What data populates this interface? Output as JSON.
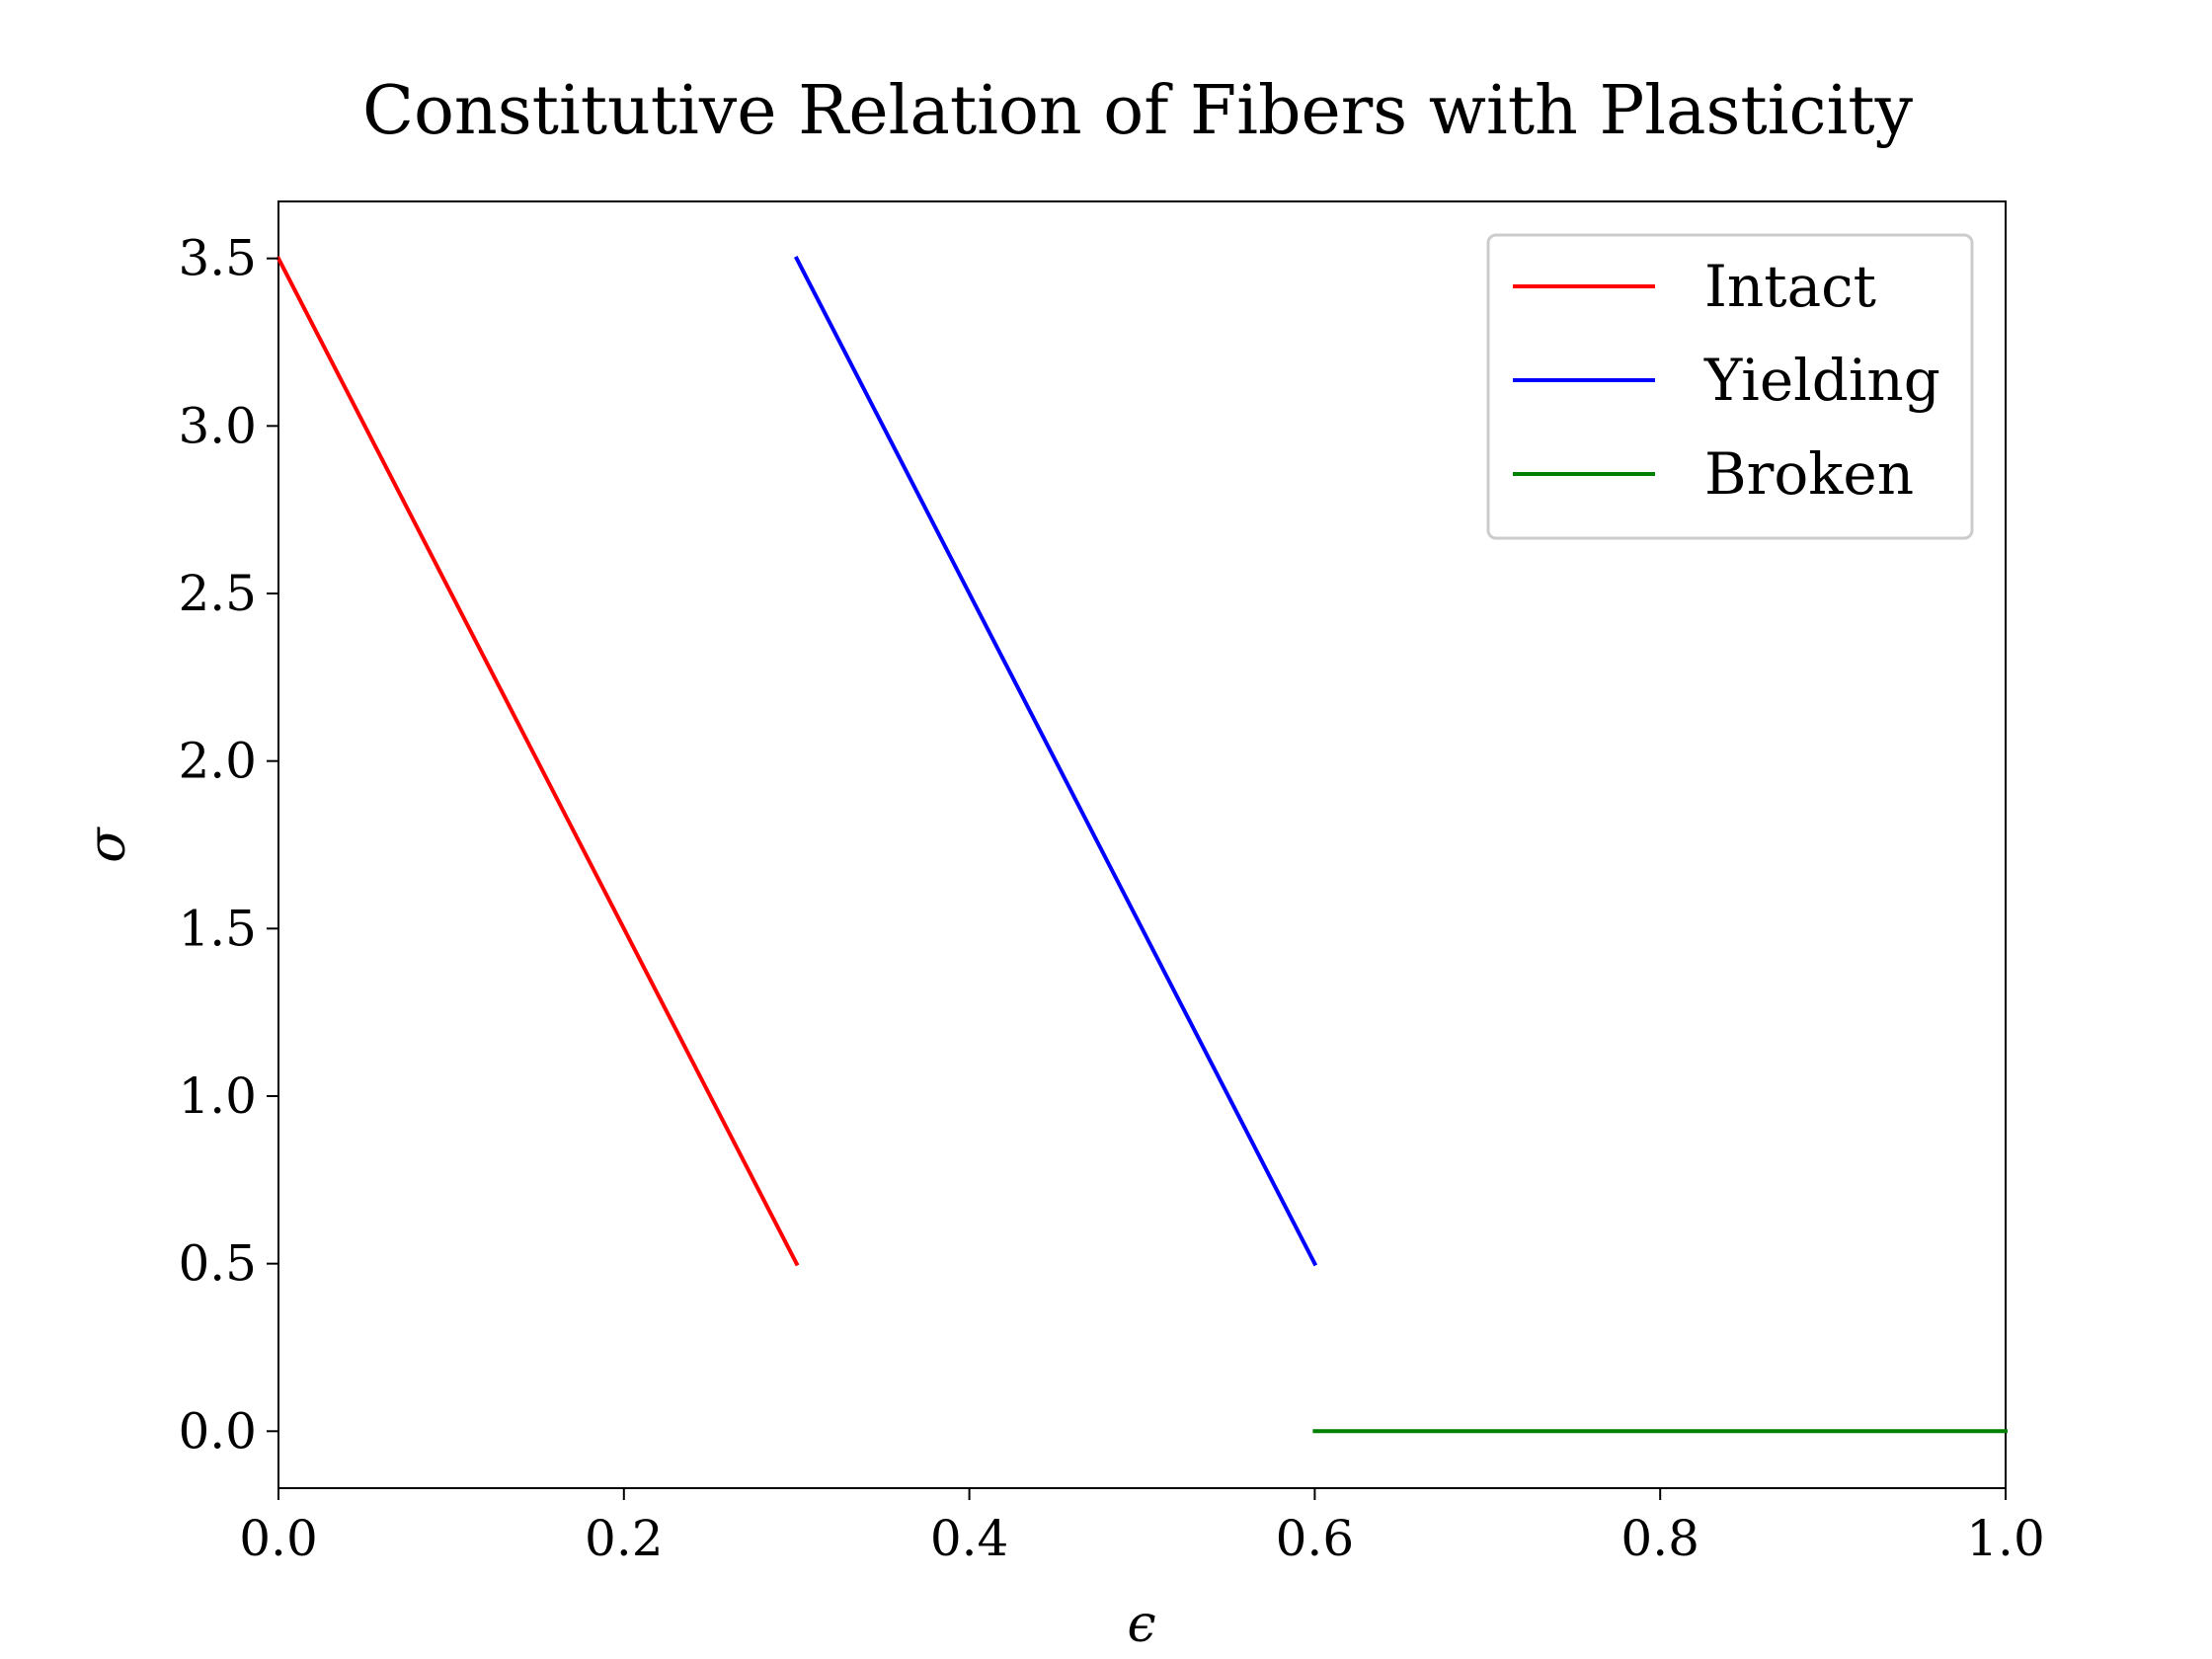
{
  "chart_data": {
    "type": "line",
    "title": "Constitutive Relation of Fibers with Plasticity",
    "xlabel": "ϵ",
    "ylabel": "σ",
    "xlim": [
      0.0,
      1.0
    ],
    "ylim": [
      -0.17,
      3.67
    ],
    "xticks": [
      0.0,
      0.2,
      0.4,
      0.6,
      0.8,
      1.0
    ],
    "xtick_labels": [
      "0.0",
      "0.2",
      "0.4",
      "0.6",
      "0.8",
      "1.0"
    ],
    "yticks": [
      0.0,
      0.5,
      1.0,
      1.5,
      2.0,
      2.5,
      3.0,
      3.5
    ],
    "ytick_labels": [
      "0.0",
      "0.5",
      "1.0",
      "1.5",
      "2.0",
      "2.5",
      "3.0",
      "3.5"
    ],
    "grid": false,
    "legend_position": "top-right",
    "series": [
      {
        "name": "Intact",
        "color": "#ff0000",
        "x": [
          0.0,
          0.3
        ],
        "y": [
          3.5,
          0.5
        ]
      },
      {
        "name": "Yielding",
        "color": "#0000ff",
        "x": [
          0.3,
          0.6
        ],
        "y": [
          3.5,
          0.5
        ]
      },
      {
        "name": "Broken",
        "color": "#008000",
        "x": [
          0.6,
          1.0
        ],
        "y": [
          0.0,
          0.0
        ]
      }
    ]
  }
}
